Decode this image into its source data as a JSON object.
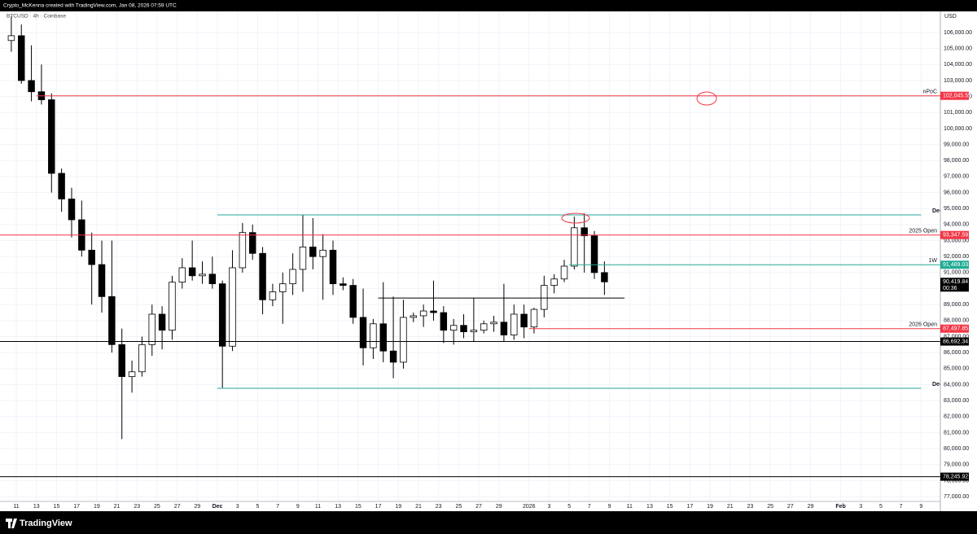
{
  "chart_data": {
    "type": "candlestick",
    "caption": "Crypto_McKenna created with TradingView.com, Jan 08, 2026 07:59 UTC",
    "title": "BTCUSD · 4h · Coinbase",
    "y_label": "USD",
    "up_color": "#ffffff",
    "down_color": "#000000",
    "wick_color": "#000000",
    "x": [
      "2025-11-10",
      "2025-11-11",
      "2025-11-12",
      "2025-11-13",
      "2025-11-14",
      "2025-11-15",
      "2025-11-16",
      "2025-11-17",
      "2025-11-18",
      "2025-11-19",
      "2025-11-20",
      "2025-11-21",
      "2025-11-22",
      "2025-11-23",
      "2025-11-24",
      "2025-11-25",
      "2025-11-26",
      "2025-11-27",
      "2025-11-28",
      "2025-11-29",
      "2025-11-30",
      "2025-12-01",
      "2025-12-02",
      "2025-12-03",
      "2025-12-04",
      "2025-12-05",
      "2025-12-06",
      "2025-12-07",
      "2025-12-08",
      "2025-12-09",
      "2025-12-10",
      "2025-12-11",
      "2025-12-12",
      "2025-12-13",
      "2025-12-14",
      "2025-12-15",
      "2025-12-16",
      "2025-12-17",
      "2025-12-18",
      "2025-12-19",
      "2025-12-20",
      "2025-12-21",
      "2025-12-22",
      "2025-12-23",
      "2025-12-24",
      "2025-12-25",
      "2025-12-26",
      "2025-12-27",
      "2025-12-28",
      "2025-12-29",
      "2025-12-30",
      "2025-12-31",
      "2026-01-01",
      "2026-01-02",
      "2026-01-03",
      "2026-01-04",
      "2026-01-05",
      "2026-01-06",
      "2026-01-07",
      "2026-01-08"
    ],
    "open": [
      105500,
      105800,
      103000,
      102300,
      101800,
      97200,
      95600,
      94300,
      92400,
      91500,
      89500,
      86500,
      84500,
      84800,
      86500,
      88400,
      87400,
      90400,
      91300,
      90800,
      90900,
      90300,
      86400,
      91300,
      93500,
      92200,
      89300,
      89800,
      90300,
      91200,
      92600,
      92000,
      92400,
      90300,
      90200,
      88200,
      86300,
      87800,
      86100,
      85400,
      88200,
      88300,
      88600,
      88500,
      87400,
      87700,
      87300,
      87400,
      87800,
      87900,
      87100,
      88400,
      87600,
      88700,
      90200,
      90600,
      91400,
      93800,
      93300,
      91000
    ],
    "high": [
      107000,
      106500,
      105200,
      104000,
      102200,
      97500,
      96300,
      95500,
      93500,
      93000,
      93000,
      87500,
      85500,
      87000,
      89000,
      88900,
      90800,
      91900,
      93000,
      91700,
      92000,
      90500,
      92400,
      94100,
      94000,
      92600,
      90300,
      91000,
      92200,
      94600,
      94400,
      93400,
      93000,
      90700,
      90600,
      90000,
      88100,
      90400,
      89500,
      89300,
      88500,
      89000,
      90500,
      88900,
      88100,
      88400,
      89400,
      88000,
      88300,
      90300,
      89000,
      89000,
      88800,
      90800,
      90900,
      91800,
      94500,
      94700,
      93600,
      91700
    ],
    "low": [
      104800,
      102800,
      101700,
      101500,
      96000,
      94800,
      93200,
      92000,
      89000,
      88500,
      86000,
      80600,
      83500,
      84500,
      85800,
      86200,
      86800,
      90000,
      90500,
      90300,
      90000,
      83800,
      86100,
      91000,
      91800,
      88400,
      88900,
      87800,
      89600,
      89800,
      91200,
      89300,
      89600,
      89900,
      87800,
      85200,
      85600,
      85400,
      84400,
      85000,
      87900,
      87600,
      88000,
      86600,
      86500,
      86900,
      86700,
      87200,
      87300,
      86700,
      86800,
      86900,
      87200,
      88200,
      89700,
      90400,
      91200,
      91000,
      90600,
      89600
    ],
    "close": [
      105800,
      103000,
      102300,
      101800,
      97200,
      95600,
      94300,
      92400,
      91500,
      89500,
      86500,
      84500,
      84800,
      86500,
      88400,
      87400,
      90400,
      91300,
      90800,
      90900,
      90300,
      86400,
      91300,
      93500,
      92200,
      89300,
      89800,
      90300,
      91200,
      92600,
      92000,
      92400,
      90300,
      90200,
      88200,
      86300,
      87800,
      86100,
      85400,
      88200,
      88300,
      88600,
      88500,
      87400,
      87700,
      87300,
      87400,
      87800,
      87900,
      87100,
      88400,
      87600,
      88700,
      90200,
      90600,
      91400,
      93800,
      93300,
      91000,
      90419.84
    ],
    "xlim": [
      "2025-11-09T09:00",
      "2026-02-10T22:00"
    ],
    "xticks": [
      {
        "value": "2025-11-11",
        "label": "11"
      },
      {
        "value": "2025-11-13",
        "label": "13"
      },
      {
        "value": "2025-11-15",
        "label": "15"
      },
      {
        "value": "2025-11-17",
        "label": "17"
      },
      {
        "value": "2025-11-19",
        "label": "19"
      },
      {
        "value": "2025-11-21",
        "label": "21"
      },
      {
        "value": "2025-11-23",
        "label": "23"
      },
      {
        "value": "2025-11-25",
        "label": "25"
      },
      {
        "value": "2025-11-27",
        "label": "27"
      },
      {
        "value": "2025-11-29",
        "label": "29"
      },
      {
        "value": "2025-12-01",
        "label": "Dec"
      },
      {
        "value": "2025-12-03",
        "label": "3"
      },
      {
        "value": "2025-12-05",
        "label": "5"
      },
      {
        "value": "2025-12-07",
        "label": "7"
      },
      {
        "value": "2025-12-09",
        "label": "9"
      },
      {
        "value": "2025-12-11",
        "label": "11"
      },
      {
        "value": "2025-12-13",
        "label": "13"
      },
      {
        "value": "2025-12-15",
        "label": "15"
      },
      {
        "value": "2025-12-17",
        "label": "17"
      },
      {
        "value": "2025-12-19",
        "label": "19"
      },
      {
        "value": "2025-12-21",
        "label": "21"
      },
      {
        "value": "2025-12-23",
        "label": "23"
      },
      {
        "value": "2025-12-25",
        "label": "25"
      },
      {
        "value": "2025-12-27",
        "label": "27"
      },
      {
        "value": "2025-12-29",
        "label": "29"
      },
      {
        "value": "2026-01-01",
        "label": "2026"
      },
      {
        "value": "2026-01-03",
        "label": "3"
      },
      {
        "value": "2026-01-05",
        "label": "5"
      },
      {
        "value": "2026-01-07",
        "label": "7"
      },
      {
        "value": "2026-01-09",
        "label": "9"
      },
      {
        "value": "2026-01-11",
        "label": "11"
      },
      {
        "value": "2026-01-13",
        "label": "13"
      },
      {
        "value": "2026-01-15",
        "label": "15"
      },
      {
        "value": "2026-01-17",
        "label": "17"
      },
      {
        "value": "2026-01-19",
        "label": "19"
      },
      {
        "value": "2026-01-21",
        "label": "21"
      },
      {
        "value": "2026-01-23",
        "label": "23"
      },
      {
        "value": "2026-01-25",
        "label": "25"
      },
      {
        "value": "2026-01-27",
        "label": "27"
      },
      {
        "value": "2026-01-29",
        "label": "29"
      },
      {
        "value": "2026-02-01",
        "label": "Feb"
      },
      {
        "value": "2026-02-03",
        "label": "3"
      },
      {
        "value": "2026-02-05",
        "label": "5"
      },
      {
        "value": "2026-02-07",
        "label": "7"
      },
      {
        "value": "2026-02-09",
        "label": "9"
      }
    ],
    "ylim": [
      76700,
      107320
    ],
    "yticks": [
      {
        "value": 77000,
        "label": "77,000.00"
      },
      {
        "value": 78000,
        "label": "78,000.00"
      },
      {
        "value": 79000,
        "label": "79,000.00"
      },
      {
        "value": 80000,
        "label": "80,000.00"
      },
      {
        "value": 81000,
        "label": "81,000.00"
      },
      {
        "value": 82000,
        "label": "82,000.00"
      },
      {
        "value": 83000,
        "label": "83,000.00"
      },
      {
        "value": 84000,
        "label": "84,000.00"
      },
      {
        "value": 85000,
        "label": "85,000.00"
      },
      {
        "value": 86000,
        "label": "86,000.00"
      },
      {
        "value": 87000,
        "label": "87,000.00"
      },
      {
        "value": 88000,
        "label": "88,000.00"
      },
      {
        "value": 89000,
        "label": "89,000.00"
      },
      {
        "value": 90000,
        "label": "90,000.00"
      },
      {
        "value": 91000,
        "label": "91,000.00"
      },
      {
        "value": 92000,
        "label": "92,000.00"
      },
      {
        "value": 93000,
        "label": "93,000.00"
      },
      {
        "value": 94000,
        "label": "94,000.00"
      },
      {
        "value": 95000,
        "label": "95,000.00"
      },
      {
        "value": 96000,
        "label": "96,000.00"
      },
      {
        "value": 97000,
        "label": "97,000.00"
      },
      {
        "value": 98000,
        "label": "98,000.00"
      },
      {
        "value": 99000,
        "label": "99,000.00"
      },
      {
        "value": 100000,
        "label": "100,000.00"
      },
      {
        "value": 101000,
        "label": "101,000.00"
      },
      {
        "value": 102000,
        "label": "102,000.00"
      },
      {
        "value": 103000,
        "label": "103,000.00"
      },
      {
        "value": 104000,
        "label": "104,000.00"
      },
      {
        "value": 105000,
        "label": "105,000.00"
      },
      {
        "value": 106000,
        "label": "106,000.00"
      }
    ],
    "levels": [
      {
        "label": "nPoC",
        "value": 102045.55,
        "value_label": "102,045.55",
        "color": "#f23645",
        "start": "2025-11-13"
      },
      {
        "label": "Dec",
        "value": 94606,
        "color": "#26a69a",
        "start": "2025-12-01",
        "end": "2026-02-09"
      },
      {
        "label": "2025 Open",
        "value": 93347.59,
        "value_label": "93,347.59",
        "color": "#f23645"
      },
      {
        "label": "1W",
        "value": 91489.03,
        "value_label": "91,489.03",
        "color": "#22ab94",
        "start": "2026-01-05"
      },
      {
        "value": 89410,
        "color": "#000000",
        "start": "2025-12-17",
        "end": "2026-01-10T12:00"
      },
      {
        "label": "2026 Open",
        "value": 87497.85,
        "value_label": "87,497.85",
        "color": "#f23645",
        "start": "2026-01-01"
      },
      {
        "value": 86692.34,
        "value_label": "86,692.34",
        "color": "#000000"
      },
      {
        "label": "Dec",
        "value": 83772,
        "color": "#26a69a",
        "start": "2025-12-01",
        "end": "2026-02-09"
      },
      {
        "value": 78245.92,
        "value_label": "78,245.92",
        "color": "#000000"
      }
    ],
    "last": {
      "value": 90419.84,
      "value_label": "90,419.84",
      "countdown": "00:36",
      "color": "#000000"
    }
  },
  "footer": {
    "brand": "TradingView"
  }
}
